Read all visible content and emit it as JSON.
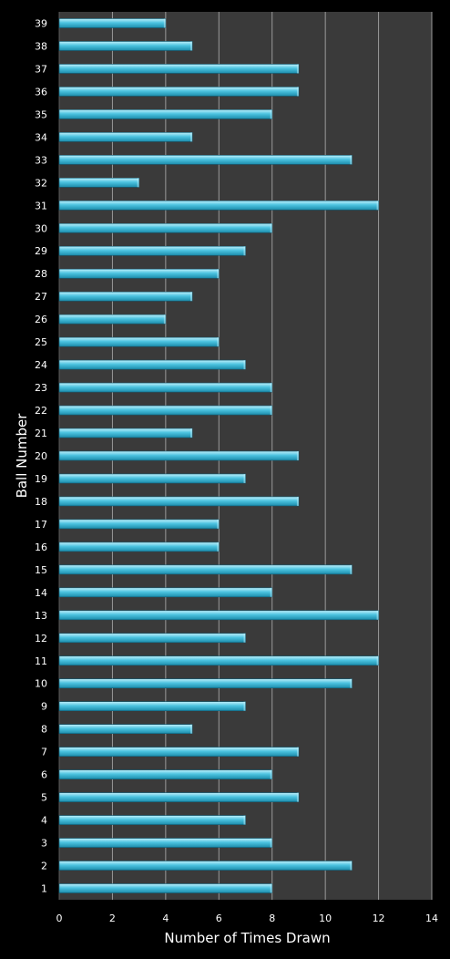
{
  "chart_data": {
    "type": "bar",
    "orientation": "horizontal",
    "categories": [
      "1",
      "2",
      "3",
      "4",
      "5",
      "6",
      "7",
      "8",
      "9",
      "10",
      "11",
      "12",
      "13",
      "14",
      "15",
      "16",
      "17",
      "18",
      "19",
      "20",
      "21",
      "22",
      "23",
      "24",
      "25",
      "26",
      "27",
      "28",
      "29",
      "30",
      "31",
      "32",
      "33",
      "34",
      "35",
      "36",
      "37",
      "38",
      "39"
    ],
    "values": [
      8,
      11,
      8,
      7,
      9,
      8,
      9,
      5,
      7,
      11,
      12,
      7,
      12,
      8,
      11,
      6,
      6,
      9,
      7,
      9,
      5,
      8,
      8,
      7,
      6,
      4,
      5,
      6,
      7,
      8,
      12,
      3,
      11,
      5,
      8,
      9,
      9,
      5,
      4
    ],
    "xlabel": "Number of Times Drawn",
    "ylabel": "Ball Number",
    "xlim": [
      0,
      14
    ],
    "xticks": [
      "0",
      "2",
      "4",
      "6",
      "8",
      "10",
      "12",
      "14"
    ],
    "grid": true,
    "colors": {
      "background": "#000000",
      "plot_area": "#3a3a3a",
      "gridline": "#9a9a9a",
      "bar_top": "#bff0fb",
      "bar_mid": "#4cc3e0",
      "bar_bottom": "#1c8cab",
      "text": "#ffffff"
    }
  }
}
